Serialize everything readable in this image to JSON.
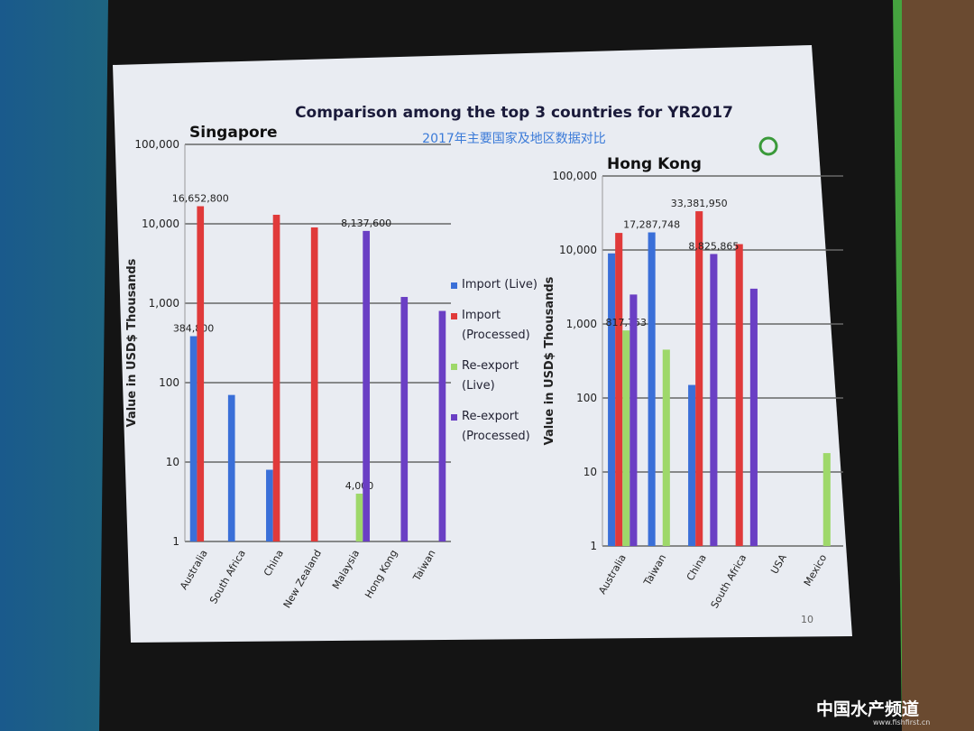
{
  "slide": {
    "title": "Comparison among the top 3 countries for YR2017",
    "subtitle": "2017年主要国家及地区数据对比",
    "page_number": "10"
  },
  "watermark": {
    "name": "中国水产频道",
    "url": "www.fishfirst.cn"
  },
  "chart_data": [
    {
      "type": "bar",
      "title": "Singapore",
      "y_label": "Value in USD$ Thousands",
      "log_scale": true,
      "grid": true,
      "categories": [
        "Australia",
        "South Africa",
        "China",
        "New Zealand",
        "Malaysia",
        "Hong Kong",
        "Taiwan"
      ],
      "ylim": [
        1,
        100000
      ],
      "yticks": [
        1,
        10,
        100,
        {
          "value": 1000,
          "label": "1,000"
        },
        {
          "value": 10000,
          "label": "10,000"
        },
        {
          "value": 100000,
          "label": "100,000"
        }
      ],
      "series": [
        {
          "name": "Import (Live)",
          "color": "#3a6fd8",
          "values": [
            384.8,
            70,
            8,
            null,
            null,
            null,
            null
          ],
          "value_labels": [
            "384,800",
            null,
            null,
            null,
            null,
            null,
            null
          ]
        },
        {
          "name": "Import (Processed)",
          "color": "#e03a3a",
          "values": [
            16652.8,
            null,
            13000,
            9000,
            null,
            null,
            null
          ],
          "value_labels": [
            "16,652,800",
            null,
            null,
            null,
            null,
            null,
            null
          ]
        },
        {
          "name": "Re-export (Live)",
          "color": "#9ed86a",
          "values": [
            null,
            null,
            null,
            null,
            4,
            null,
            null
          ],
          "value_labels": [
            null,
            null,
            null,
            null,
            "4,000",
            null,
            null
          ]
        },
        {
          "name": "Re-export (Processed)",
          "color": "#6a3fc4",
          "values": [
            null,
            null,
            null,
            null,
            8137.6,
            1200,
            800
          ],
          "value_labels": [
            null,
            null,
            null,
            null,
            "8,137,600",
            null,
            null
          ]
        }
      ]
    },
    {
      "type": "bar",
      "title": "Hong Kong",
      "y_label": "Value in USD$ Thousands",
      "log_scale": true,
      "grid": true,
      "categories": [
        "Australia",
        "Taiwan",
        "China",
        "South Africa",
        "USA",
        "Mexico"
      ],
      "ylim": [
        1,
        100000
      ],
      "yticks": [
        1,
        10,
        100,
        {
          "value": 1000,
          "label": "1,000"
        },
        {
          "value": 10000,
          "label": "10,000"
        },
        {
          "value": 100000,
          "label": "100,000"
        }
      ],
      "series": [
        {
          "color": "#3a6fd8",
          "values": [
            9000,
            17287.748,
            150,
            null,
            null,
            null
          ],
          "value_labels": [
            null,
            "17,287,748",
            null,
            null,
            null,
            null
          ]
        },
        {
          "color": "#e03a3a",
          "values": [
            17000,
            null,
            33381.95,
            12000,
            null,
            null
          ],
          "value_labels": [
            null,
            null,
            "33,381,950",
            null,
            null,
            null
          ]
        },
        {
          "color": "#9ed86a",
          "values": [
            817.753,
            450,
            null,
            null,
            null,
            18
          ],
          "value_labels": [
            "817,753",
            null,
            null,
            null,
            null,
            null
          ]
        },
        {
          "color": "#6a3fc4",
          "values": [
            2500,
            null,
            8825.865,
            3000,
            null,
            null
          ],
          "value_labels": [
            null,
            null,
            "8,825,865",
            null,
            null,
            null
          ]
        }
      ]
    }
  ]
}
